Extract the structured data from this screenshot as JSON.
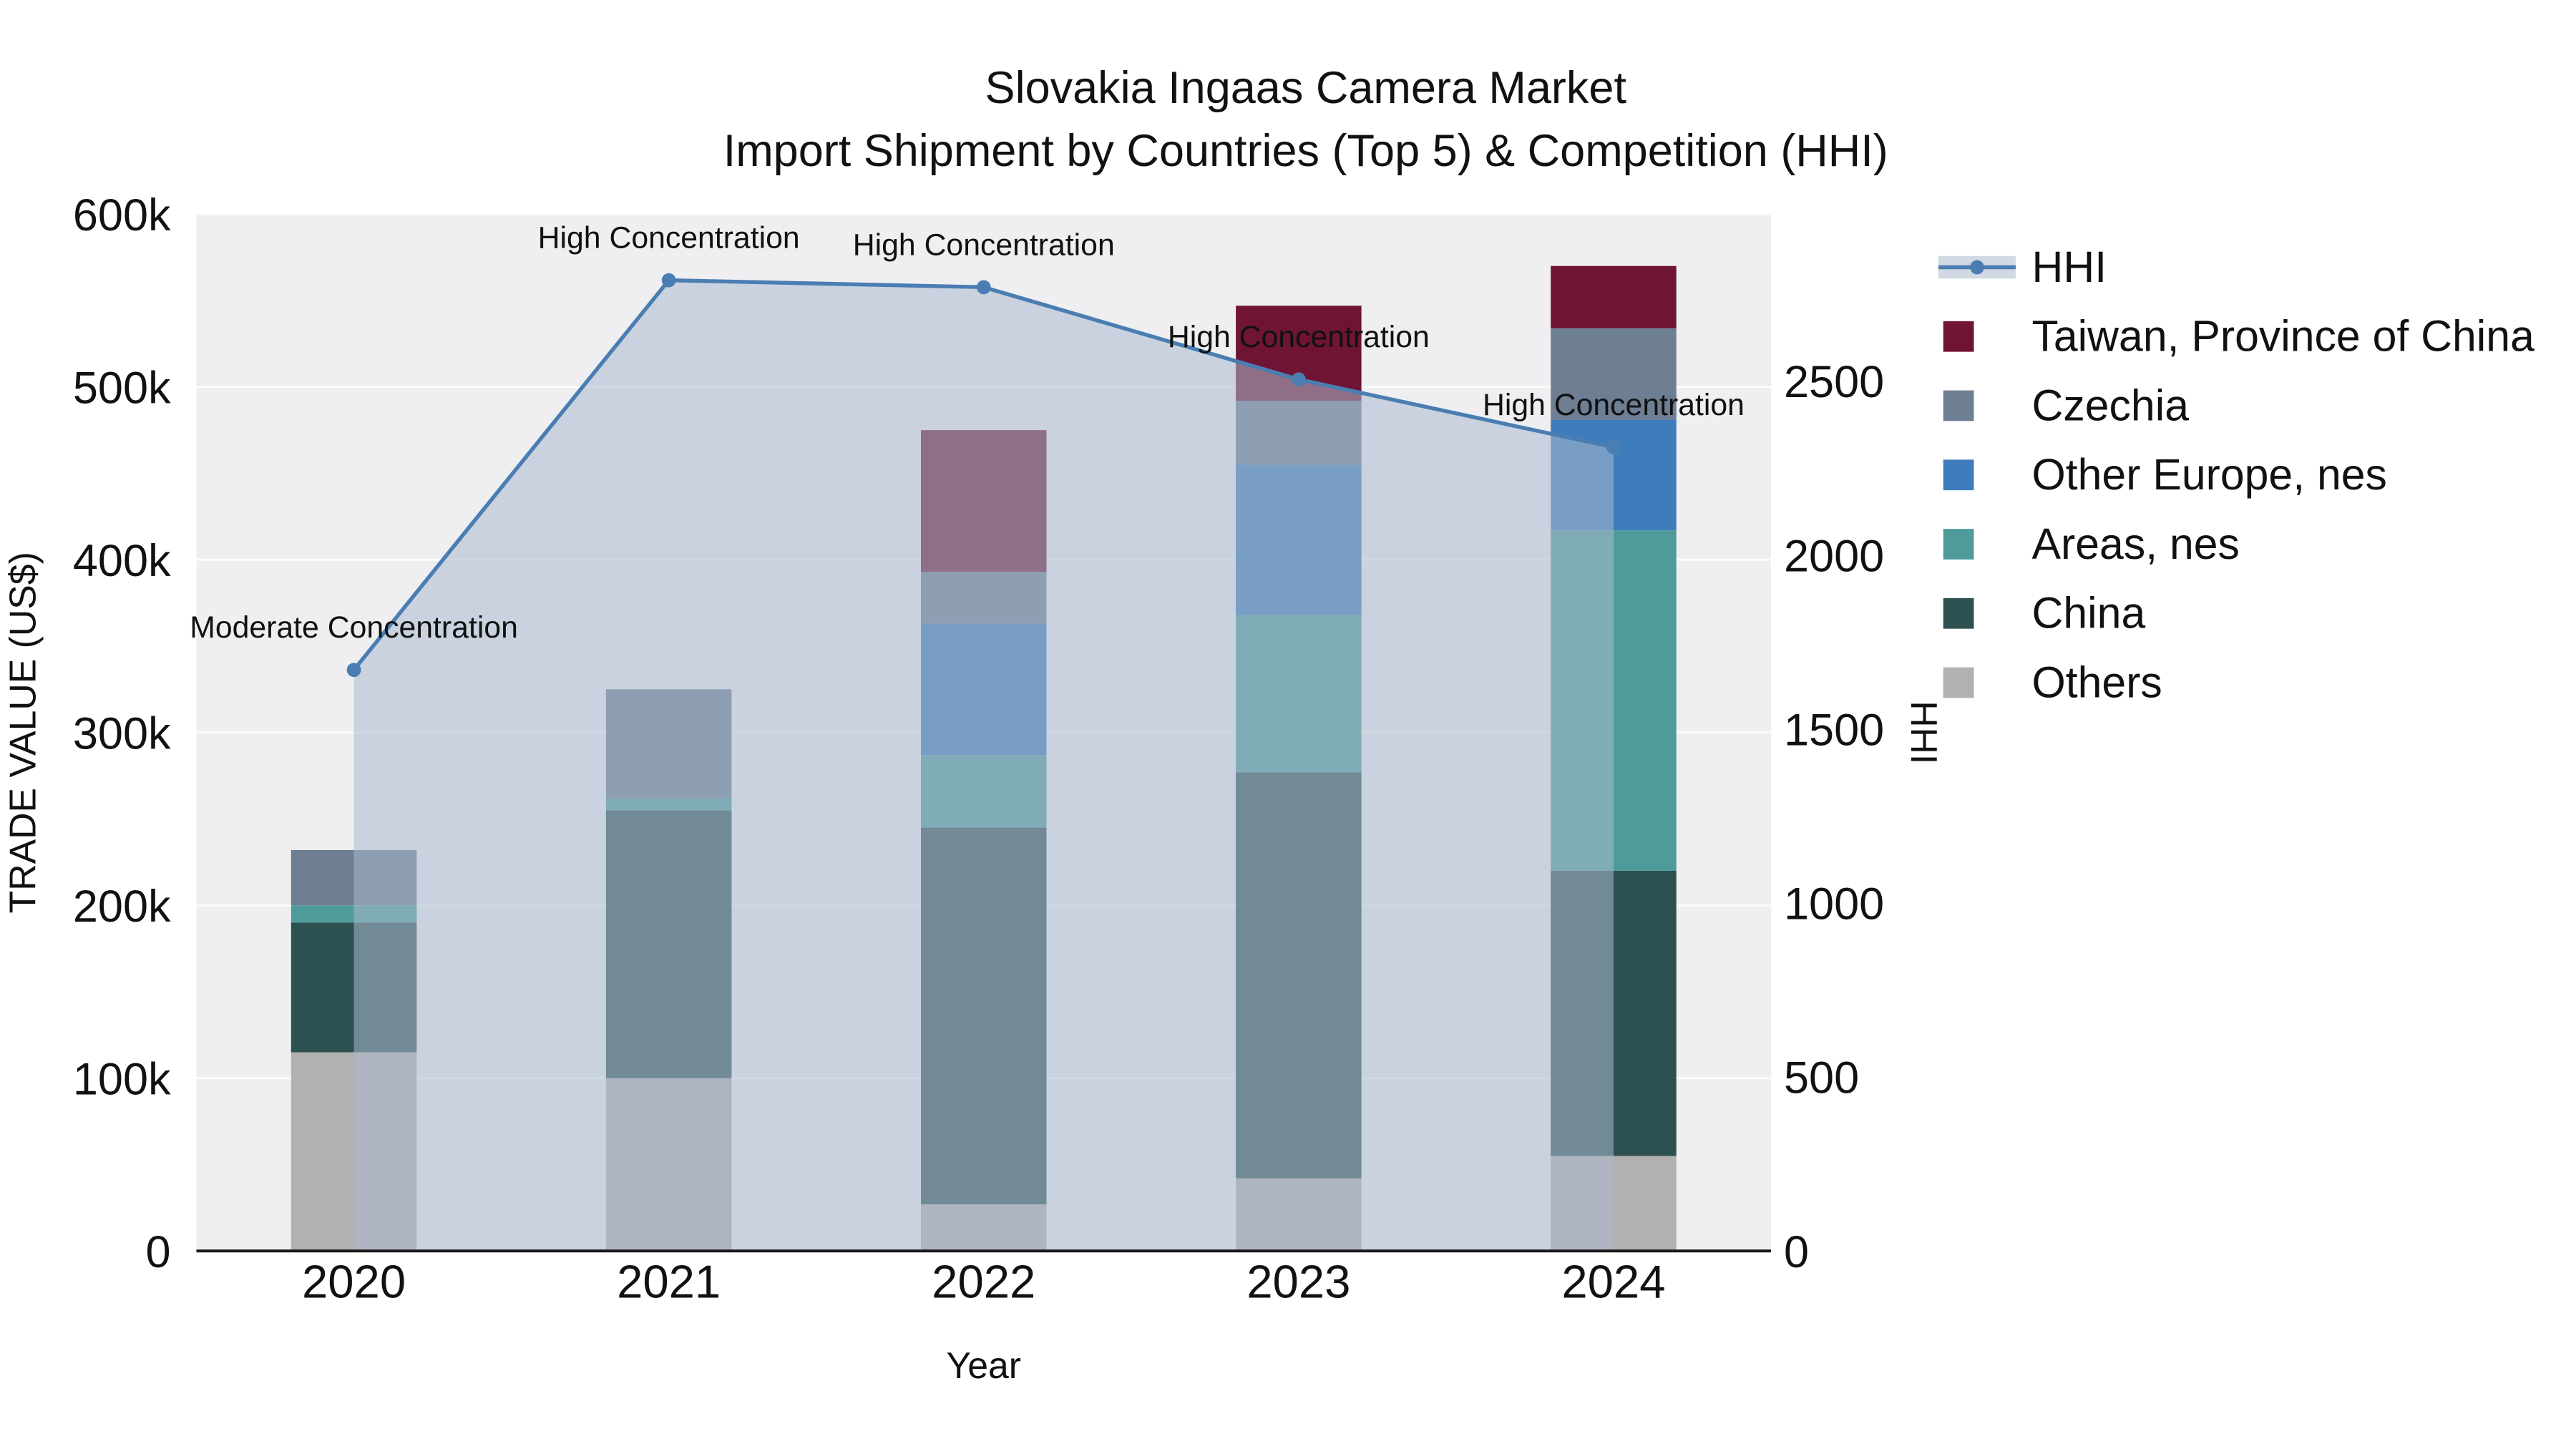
{
  "title": {
    "line1": "Slovakia Ingaas Camera Market",
    "line2": "Import Shipment by Countries (Top 5) & Competition (HHI)"
  },
  "chart_data": {
    "type": "stacked-bar+line",
    "x": [
      "2020",
      "2021",
      "2022",
      "2023",
      "2024"
    ],
    "xlabel": "Year",
    "ylabel_left": "TRADE VALUE (US$)",
    "ylabel_right": "HHI",
    "ylim_left": [
      0,
      600000
    ],
    "ylim_right": [
      0,
      2980
    ],
    "yticks_left": [
      {
        "value": 0,
        "label": "0"
      },
      {
        "value": 100000,
        "label": "100k"
      },
      {
        "value": 200000,
        "label": "200k"
      },
      {
        "value": 300000,
        "label": "300k"
      },
      {
        "value": 400000,
        "label": "400k"
      },
      {
        "value": 500000,
        "label": "500k"
      },
      {
        "value": 600000,
        "label": "600k"
      }
    ],
    "yticks_right": [
      {
        "value": 0,
        "label": "0"
      },
      {
        "value": 500,
        "label": "500"
      },
      {
        "value": 1000,
        "label": "1000"
      },
      {
        "value": 1500,
        "label": "1500"
      },
      {
        "value": 2000,
        "label": "2000"
      },
      {
        "value": 2500,
        "label": "2500"
      }
    ],
    "bar_series": [
      {
        "name": "Others",
        "color": "#b3b0b0",
        "values": [
          115000,
          100000,
          27000,
          42000,
          55000
        ]
      },
      {
        "name": "China",
        "color": "#2d5050",
        "values": [
          75000,
          155000,
          218000,
          235000,
          165000
        ]
      },
      {
        "name": "Areas, nes",
        "color": "#4f9b9b",
        "values": [
          10000,
          7000,
          42000,
          91000,
          197000
        ]
      },
      {
        "name": "Other Europe, nes",
        "color": "#3e7cbc",
        "values": [
          0,
          0,
          76000,
          87000,
          64000
        ]
      },
      {
        "name": "Czechia",
        "color": "#6e7e93",
        "values": [
          32000,
          63000,
          30000,
          37000,
          53000
        ]
      },
      {
        "name": "Taiwan, Province of China",
        "color": "#6f1434",
        "values": [
          0,
          0,
          82000,
          55000,
          36000
        ]
      }
    ],
    "line_series": {
      "name": "HHI",
      "color": "#4a7eb2",
      "area_color": "rgba(170,186,205,0.55)",
      "values": [
        1670,
        2790,
        2770,
        2505,
        2310
      ]
    },
    "annotations": [
      "Moderate Concentration",
      "High Concentration",
      "High Concentration",
      "High Concentration",
      "High Concentration"
    ],
    "legend": [
      {
        "label": "HHI",
        "type": "line"
      },
      {
        "label": "Taiwan, Province of China",
        "type": "square",
        "color": "#6f1434"
      },
      {
        "label": "Czechia",
        "type": "square",
        "color": "#6e7e93"
      },
      {
        "label": "Other Europe, nes",
        "type": "square",
        "color": "#3e7cbc"
      },
      {
        "label": "Areas, nes",
        "type": "square",
        "color": "#4f9b9b"
      },
      {
        "label": "China",
        "type": "square",
        "color": "#2d5050"
      },
      {
        "label": "Others",
        "type": "square",
        "color": "#b3b0b0"
      }
    ],
    "plot_bg": "#efeff1",
    "grid_color": "#ffffff"
  }
}
